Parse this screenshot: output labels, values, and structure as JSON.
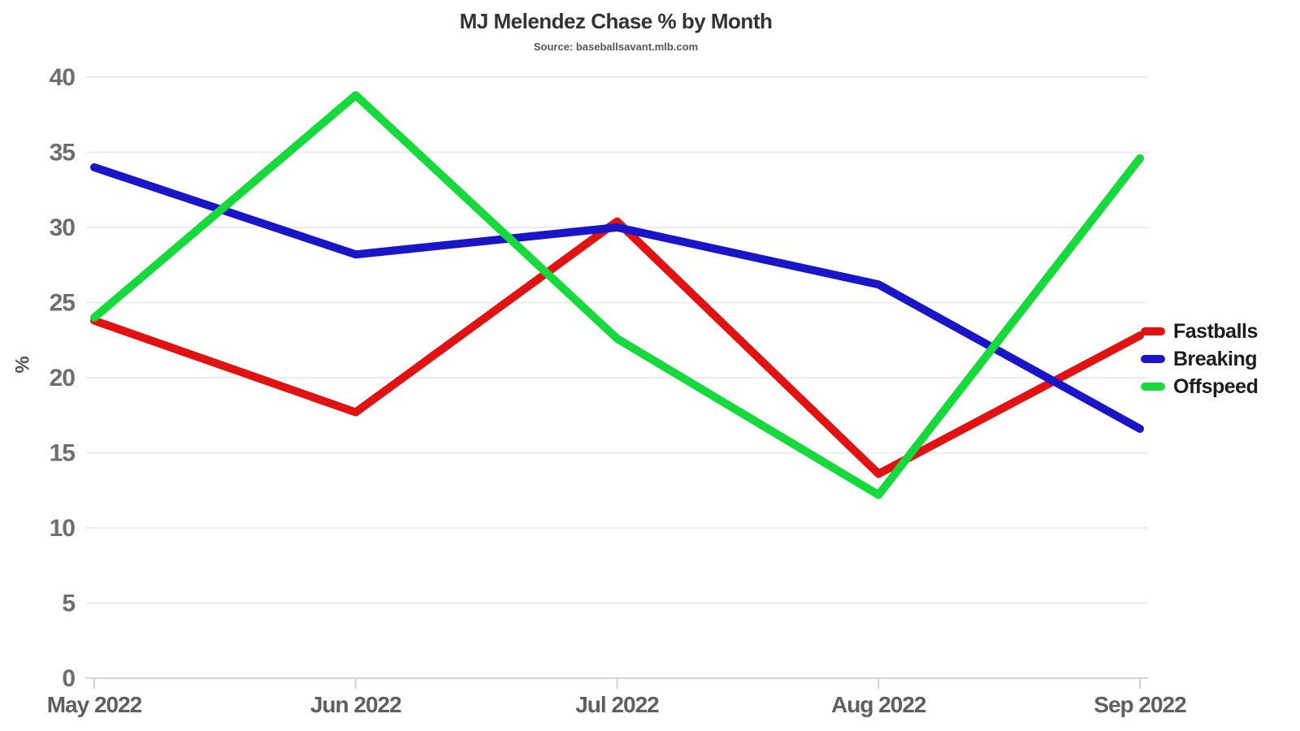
{
  "header": {
    "title": "MJ Melendez Chase % by Month",
    "subtitle": "Source: baseballsavant.mlb.com"
  },
  "chart_data": {
    "type": "line",
    "categories": [
      "May 2022",
      "Jun 2022",
      "Jul 2022",
      "Aug 2022",
      "Sep 2022"
    ],
    "series": [
      {
        "name": "Fastballs",
        "color": "#e11212",
        "values": [
          23.8,
          17.7,
          30.4,
          13.6,
          22.8
        ]
      },
      {
        "name": "Breaking",
        "color": "#1a16c8",
        "values": [
          34.0,
          28.2,
          30.0,
          26.2,
          16.6
        ]
      },
      {
        "name": "Offspeed",
        "color": "#16d93c",
        "values": [
          24.0,
          38.8,
          22.6,
          12.2,
          34.6
        ]
      }
    ],
    "title": "MJ Melendez Chase % by Month",
    "xlabel": "",
    "ylabel": "%",
    "ylim": [
      0,
      40
    ],
    "ytick_step": 5,
    "grid": true,
    "legend_position": "right",
    "line_width": 10
  },
  "style_colors": {
    "grid_line": "#ececec",
    "axis_line": "#d6d6d6",
    "month_tick": "#ccd2dc",
    "tick_label": "#6e6e6e"
  }
}
